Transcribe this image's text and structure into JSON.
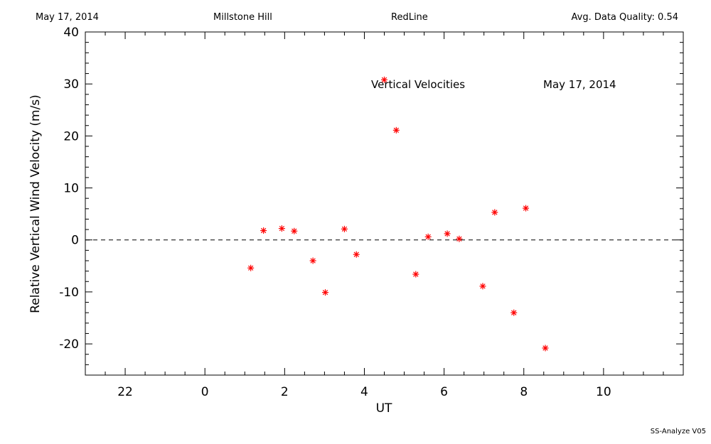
{
  "header": {
    "date": "May 17, 2014",
    "site": "Millstone Hill",
    "filter": "RedLine",
    "quality": "Avg. Data Quality: 0.54"
  },
  "footer": {
    "version": "SS-Analyze V05"
  },
  "colors": {
    "marker": "#ff0000",
    "axis": "#000000"
  },
  "chart_data": {
    "type": "scatter",
    "title": "Vertical Velocities",
    "date_annotation": "May 17, 2014",
    "xlabel": "UT",
    "ylabel": "Relative Vertical Wind Velocity (m/s)",
    "xlim": [
      -3.0,
      12.0
    ],
    "ylim": [
      -26,
      40
    ],
    "x_ticks": [
      22,
      0,
      2,
      4,
      6,
      8,
      10
    ],
    "y_ticks": [
      40,
      30,
      20,
      10,
      0,
      -10,
      -20
    ],
    "zero_line": "dashed",
    "grid": false,
    "marker": "asterisk",
    "series": [
      {
        "x": [
          1.15,
          1.47,
          1.93,
          2.24,
          2.71,
          3.02,
          3.5,
          3.8,
          4.5,
          4.8,
          5.29,
          5.6,
          6.08,
          6.38,
          6.97,
          7.27,
          7.75,
          8.05,
          8.54
        ],
        "y": [
          -5.4,
          1.8,
          2.2,
          1.7,
          -4.0,
          -10.1,
          2.1,
          -2.8,
          30.8,
          21.1,
          -6.6,
          0.6,
          1.2,
          0.2,
          -8.9,
          5.3,
          -14.0,
          6.1,
          -20.8
        ]
      }
    ]
  }
}
